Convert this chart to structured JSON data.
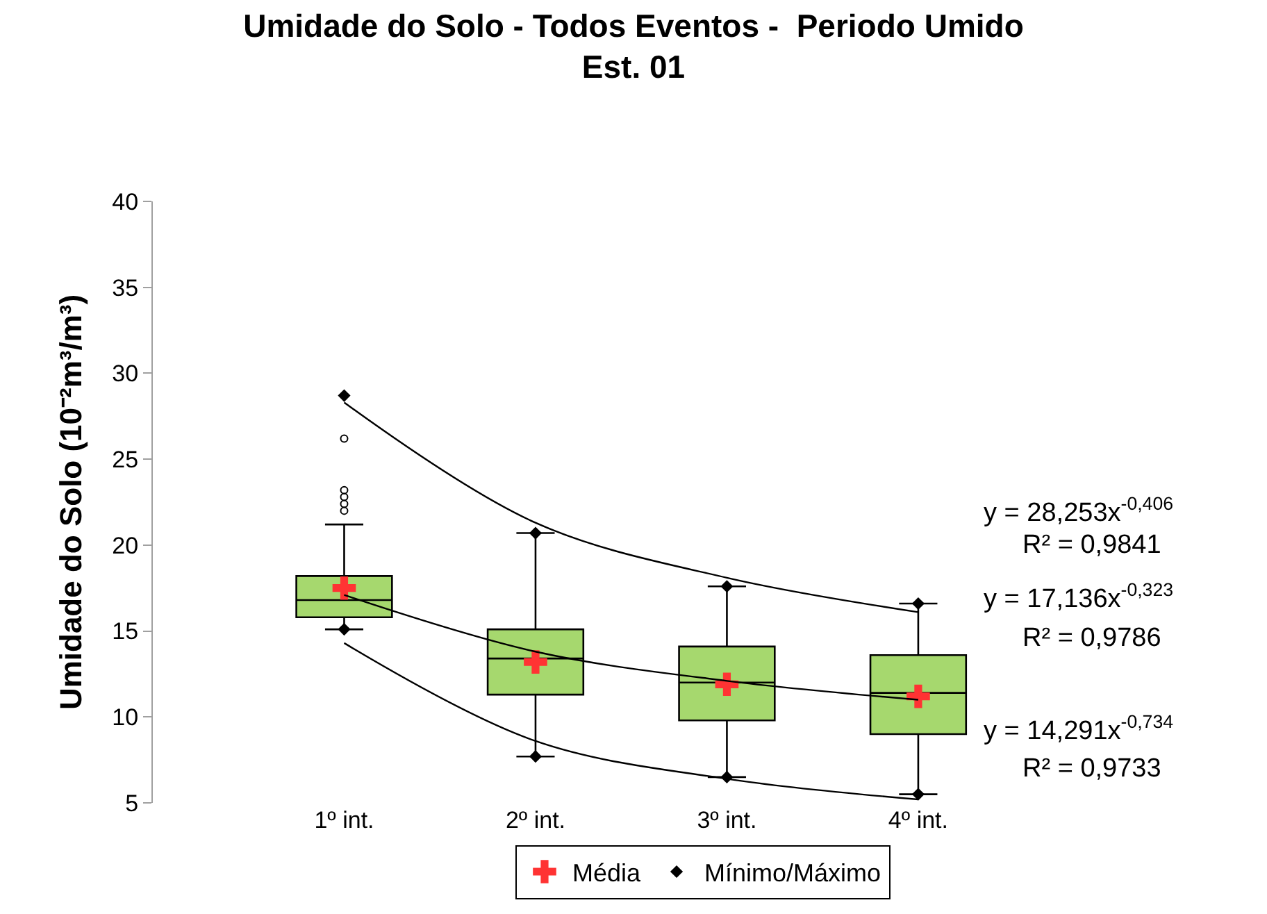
{
  "chart_data": {
    "type": "box",
    "title": "Umidade do Solo - Todos Eventos -  Periodo Umido\nEst. 01",
    "ylabel": "Umidade do Solo (10⁻²m³/m³)",
    "categories": [
      "1º int.",
      "2º int.",
      "3º int.",
      "4º int."
    ],
    "ylim": [
      5,
      40
    ],
    "yticks": [
      5,
      10,
      15,
      20,
      25,
      30,
      35,
      40
    ],
    "legend": "bottom",
    "boxes": [
      {
        "low": 15.1,
        "q1": 15.8,
        "median": 16.8,
        "q3": 18.2,
        "high": 21.2,
        "outliers": [
          22.0,
          22.4,
          22.8,
          23.2,
          26.2
        ]
      },
      {
        "low": 7.7,
        "q1": 11.3,
        "median": 13.4,
        "q3": 15.1,
        "high": 20.7
      },
      {
        "low": 6.5,
        "q1": 9.8,
        "median": 12.0,
        "q3": 14.1,
        "high": 17.6
      },
      {
        "low": 5.5,
        "q1": 9.0,
        "median": 11.4,
        "q3": 13.6,
        "high": 16.6
      }
    ],
    "color": "#a6d86e",
    "series": [
      {
        "type": "scatter",
        "name": "Média",
        "color": "#ff3333",
        "marker": "cross",
        "x": [
          "1º int.",
          "2º int.",
          "3º int.",
          "4º int."
        ],
        "values": [
          17.5,
          13.2,
          11.9,
          11.2
        ]
      },
      {
        "type": "scatter",
        "name": "Mínimo/Máximo",
        "color": "#000000",
        "marker": "diamond",
        "x": [
          "1º int.",
          "2º int.",
          "3º int.",
          "4º int.",
          "1º int.",
          "2º int.",
          "3º int.",
          "4º int."
        ],
        "values": [
          28.7,
          20.7,
          17.6,
          16.6,
          15.1,
          7.7,
          6.5,
          5.5
        ]
      },
      {
        "type": "line",
        "color": "#000000",
        "marker": "none",
        "line_style": "solid",
        "x": [
          "1º int.",
          "2º int.",
          "3º int.",
          "4º int."
        ],
        "values": [
          28.3,
          21.3,
          18.1,
          16.1
        ]
      },
      {
        "type": "line",
        "color": "#000000",
        "marker": "none",
        "line_style": "solid",
        "x": [
          "1º int.",
          "2º int.",
          "3º int.",
          "4º int."
        ],
        "values": [
          17.1,
          13.8,
          12.1,
          11.0
        ]
      },
      {
        "type": "line",
        "color": "#000000",
        "marker": "none",
        "line_style": "solid",
        "x": [
          "1º int.",
          "2º int.",
          "3º int.",
          "4º int."
        ],
        "values": [
          14.3,
          8.6,
          6.4,
          5.2
        ]
      }
    ],
    "annotations": [
      "y = 28,253x$^{-0,406}$",
      "R² = 0,9841",
      "y = 17,136x$^{-0,323}$",
      "R² = 0,9786",
      "y = 14,291x$^{-0,734}$",
      "R² = 0,9733"
    ]
  }
}
